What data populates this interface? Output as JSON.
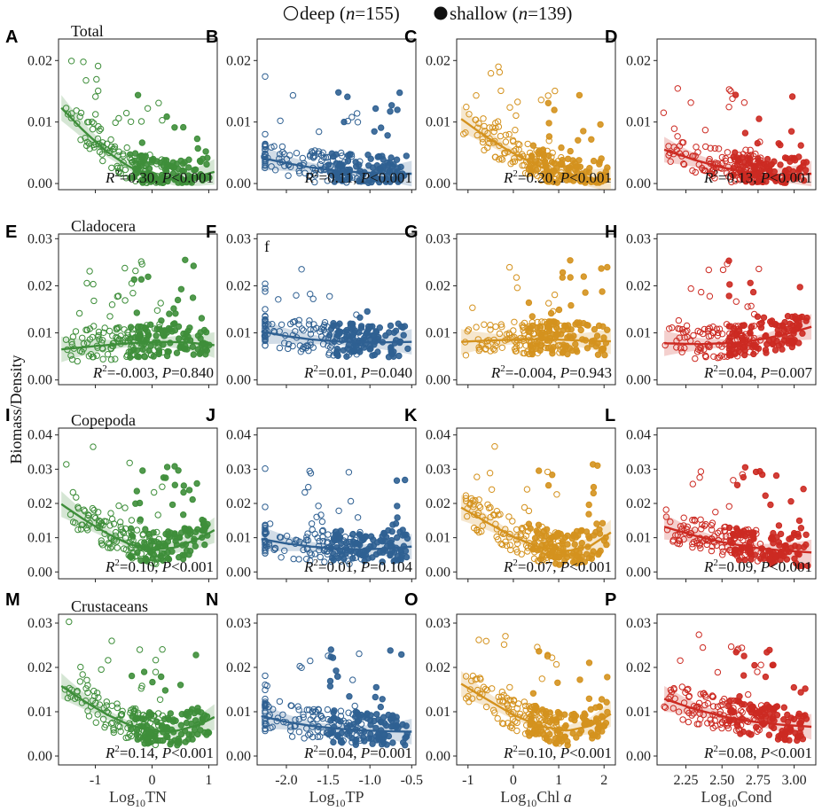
{
  "legend": {
    "deep_label": "deep (",
    "deep_n": "n",
    "deep_count": "=155)",
    "shallow_label": "shallow (",
    "shallow_n": "n",
    "shallow_count": "=139)"
  },
  "y_axis_label": "Biomass/Density",
  "colors": {
    "TN": "#3e8e3a",
    "TP": "#2f6092",
    "Chl": "#d4921e",
    "Cond": "#cc2a22"
  },
  "chart_data": {
    "type": "scatter",
    "columns": [
      {
        "key": "TN",
        "color_key": "TN",
        "xlim": [
          -1.65,
          1.15
        ],
        "xticks": [
          "-1",
          "0",
          "1"
        ],
        "xtick_values": [
          -1,
          0,
          1
        ],
        "xlabel_pre": "Log",
        "xlabel_sub": "10",
        "xlabel_post": "TN",
        "xlabel_italic": ""
      },
      {
        "key": "TP",
        "color_key": "TP",
        "xlim": [
          -2.35,
          -0.45
        ],
        "xticks": [
          "-2.0",
          "-1.5",
          "-1.0",
          "-0.5"
        ],
        "xtick_values": [
          -2.0,
          -1.5,
          -1.0,
          -0.5
        ],
        "xlabel_pre": "Log",
        "xlabel_sub": "10",
        "xlabel_post": "TP",
        "xlabel_italic": ""
      },
      {
        "key": "Chl",
        "color_key": "Chl",
        "xlim": [
          -1.25,
          2.25
        ],
        "xticks": [
          "-1",
          "0",
          "1",
          "2"
        ],
        "xtick_values": [
          -1,
          0,
          1,
          2
        ],
        "xlabel_pre": "Log",
        "xlabel_sub": "10",
        "xlabel_post": "Chl ",
        "xlabel_italic": "a"
      },
      {
        "key": "Cond",
        "color_key": "Cond",
        "xlim": [
          2.05,
          3.15
        ],
        "xticks": [
          "2.25",
          "2.50",
          "2.75",
          "3.00"
        ],
        "xtick_values": [
          2.25,
          2.5,
          2.75,
          3.0
        ],
        "xlabel_pre": "Log",
        "xlabel_sub": "10",
        "xlabel_post": "Cond",
        "xlabel_italic": ""
      }
    ],
    "rows": [
      {
        "key": "Total",
        "group_label": "Total",
        "ylim": [
          -0.001,
          0.0235
        ],
        "yticks": [
          "0.00",
          "0.01",
          "0.02"
        ],
        "ytick_values": [
          0.0,
          0.01,
          0.02
        ]
      },
      {
        "key": "Cladocera",
        "group_label": "Cladocera",
        "ylim": [
          -0.001,
          0.031
        ],
        "yticks": [
          "0.00",
          "0.01",
          "0.02",
          "0.03"
        ],
        "ytick_values": [
          0.0,
          0.01,
          0.02,
          0.03
        ]
      },
      {
        "key": "Copepoda",
        "group_label": "Copepoda",
        "ylim": [
          -0.002,
          0.042
        ],
        "yticks": [
          "0.00",
          "0.01",
          "0.02",
          "0.03",
          "0.04"
        ],
        "ytick_values": [
          0.0,
          0.01,
          0.02,
          0.03,
          0.04
        ]
      },
      {
        "key": "Crustaceans",
        "group_label": "Crustaceans",
        "ylim": [
          -0.002,
          0.032
        ],
        "yticks": [
          "0.00",
          "0.01",
          "0.02",
          "0.03"
        ],
        "ytick_values": [
          0.0,
          0.01,
          0.02,
          0.03
        ]
      }
    ],
    "panels": [
      {
        "letter": "A",
        "row": 0,
        "col": 0,
        "r2": "=0.30, ",
        "p": "<0.001",
        "fit": [
          [
            -1.6,
            0.0123
          ],
          [
            -1.2,
            0.0085
          ],
          [
            -0.8,
            0.0052
          ],
          [
            -0.4,
            0.0027
          ],
          [
            0.0,
            0.0012
          ],
          [
            0.4,
            0.0006
          ],
          [
            0.8,
            0.0011
          ],
          [
            1.1,
            0.0019
          ]
        ]
      },
      {
        "letter": "B",
        "row": 0,
        "col": 1,
        "r2": "=0.11, ",
        "p": "<0.001",
        "fit": [
          [
            -2.3,
            0.0042
          ],
          [
            -2.0,
            0.0033
          ],
          [
            -1.7,
            0.0026
          ],
          [
            -1.4,
            0.0021
          ],
          [
            -1.1,
            0.0018
          ],
          [
            -0.8,
            0.0016
          ],
          [
            -0.5,
            0.0016
          ]
        ]
      },
      {
        "letter": "C",
        "row": 0,
        "col": 2,
        "r2": "=0.20, ",
        "p": "<0.001",
        "fit": [
          [
            -1.15,
            0.0105
          ],
          [
            -0.6,
            0.0076
          ],
          [
            0.0,
            0.0049
          ],
          [
            0.6,
            0.0027
          ],
          [
            1.2,
            0.0013
          ],
          [
            1.7,
            0.0008
          ],
          [
            2.15,
            0.0007
          ]
        ]
      },
      {
        "letter": "D",
        "row": 0,
        "col": 3,
        "r2": "=0.13, ",
        "p": "<0.001",
        "fit": [
          [
            2.1,
            0.0055
          ],
          [
            2.3,
            0.0039
          ],
          [
            2.5,
            0.0026
          ],
          [
            2.7,
            0.0018
          ],
          [
            2.85,
            0.0014
          ],
          [
            3.0,
            0.0014
          ],
          [
            3.12,
            0.0016
          ]
        ]
      },
      {
        "letter": "E",
        "row": 1,
        "col": 0,
        "r2": "=-0.003, ",
        "p": "=0.840",
        "fit": [
          [
            -1.6,
            0.0065
          ],
          [
            -1.0,
            0.0072
          ],
          [
            -0.4,
            0.0078
          ],
          [
            0.2,
            0.0081
          ],
          [
            0.6,
            0.008
          ],
          [
            1.1,
            0.0074
          ]
        ]
      },
      {
        "letter": "F",
        "row": 1,
        "col": 1,
        "r2": "=0.01, ",
        "p": "=0.040",
        "fit": [
          [
            -2.3,
            0.0103
          ],
          [
            -2.0,
            0.0093
          ],
          [
            -1.7,
            0.0086
          ],
          [
            -1.4,
            0.0082
          ],
          [
            -1.1,
            0.008
          ],
          [
            -0.8,
            0.008
          ],
          [
            -0.5,
            0.0081
          ]
        ],
        "extra_label": "f"
      },
      {
        "letter": "G",
        "row": 1,
        "col": 2,
        "r2": "=-0.004, ",
        "p": "=0.943",
        "fit": [
          [
            -1.15,
            0.0081
          ],
          [
            -0.5,
            0.0084
          ],
          [
            0.2,
            0.0086
          ],
          [
            0.9,
            0.0086
          ],
          [
            1.5,
            0.0084
          ],
          [
            2.15,
            0.0082
          ]
        ]
      },
      {
        "letter": "H",
        "row": 1,
        "col": 3,
        "r2": "=0.04, ",
        "p": "=0.007",
        "fit": [
          [
            2.1,
            0.0078
          ],
          [
            2.35,
            0.0076
          ],
          [
            2.6,
            0.0079
          ],
          [
            2.8,
            0.0088
          ],
          [
            2.95,
            0.0098
          ],
          [
            3.12,
            0.0113
          ]
        ]
      },
      {
        "letter": "I",
        "row": 2,
        "col": 0,
        "r2": "=0.10, ",
        "p": "<0.001",
        "fit": [
          [
            -1.6,
            0.0198
          ],
          [
            -1.2,
            0.0153
          ],
          [
            -0.8,
            0.0113
          ],
          [
            -0.4,
            0.0081
          ],
          [
            0.0,
            0.0066
          ],
          [
            0.4,
            0.0071
          ],
          [
            0.8,
            0.0095
          ],
          [
            1.1,
            0.0122
          ]
        ]
      },
      {
        "letter": "J",
        "row": 2,
        "col": 1,
        "r2": "=0.01, ",
        "p": "=0.104",
        "fit": [
          [
            -2.3,
            0.0096
          ],
          [
            -2.0,
            0.0083
          ],
          [
            -1.7,
            0.0074
          ],
          [
            -1.4,
            0.0068
          ],
          [
            -1.1,
            0.0066
          ],
          [
            -0.8,
            0.0068
          ],
          [
            -0.5,
            0.0074
          ]
        ]
      },
      {
        "letter": "K",
        "row": 2,
        "col": 2,
        "r2": "=0.07, ",
        "p": "<0.001",
        "fit": [
          [
            -1.15,
            0.0188
          ],
          [
            -0.6,
            0.0146
          ],
          [
            0.0,
            0.0102
          ],
          [
            0.6,
            0.0071
          ],
          [
            1.2,
            0.0061
          ],
          [
            1.7,
            0.0076
          ],
          [
            2.15,
            0.0115
          ]
        ]
      },
      {
        "letter": "L",
        "row": 2,
        "col": 3,
        "r2": "=0.09, ",
        "p": "<0.001",
        "fit": [
          [
            2.1,
            0.0132
          ],
          [
            2.3,
            0.0107
          ],
          [
            2.5,
            0.0087
          ],
          [
            2.7,
            0.0072
          ],
          [
            2.9,
            0.0063
          ],
          [
            3.12,
            0.0057
          ]
        ]
      },
      {
        "letter": "M",
        "row": 3,
        "col": 0,
        "r2": "=0.14, ",
        "p": "<0.001",
        "fit": [
          [
            -1.6,
            0.0158
          ],
          [
            -1.2,
            0.0124
          ],
          [
            -0.8,
            0.0094
          ],
          [
            -0.4,
            0.007
          ],
          [
            0.0,
            0.0056
          ],
          [
            0.4,
            0.0056
          ],
          [
            0.8,
            0.0069
          ],
          [
            1.1,
            0.0088
          ]
        ]
      },
      {
        "letter": "N",
        "row": 3,
        "col": 1,
        "r2": "=0.04, ",
        "p": "=0.001",
        "fit": [
          [
            -2.3,
            0.009
          ],
          [
            -2.0,
            0.0077
          ],
          [
            -1.7,
            0.0068
          ],
          [
            -1.4,
            0.0062
          ],
          [
            -1.1,
            0.0058
          ],
          [
            -0.8,
            0.0056
          ],
          [
            -0.5,
            0.0055
          ]
        ]
      },
      {
        "letter": "O",
        "row": 3,
        "col": 2,
        "r2": "=0.10, ",
        "p": "<0.001",
        "fit": [
          [
            -1.15,
            0.0163
          ],
          [
            -0.6,
            0.0129
          ],
          [
            0.0,
            0.0093
          ],
          [
            0.6,
            0.0067
          ],
          [
            1.2,
            0.0057
          ],
          [
            1.7,
            0.0068
          ],
          [
            2.15,
            0.0095
          ]
        ]
      },
      {
        "letter": "P",
        "row": 3,
        "col": 3,
        "r2": "=0.08, ",
        "p": "<0.001",
        "fit": [
          [
            2.1,
            0.0129
          ],
          [
            2.3,
            0.0107
          ],
          [
            2.5,
            0.009
          ],
          [
            2.7,
            0.0078
          ],
          [
            2.9,
            0.0071
          ],
          [
            3.12,
            0.0066
          ]
        ]
      }
    ]
  }
}
